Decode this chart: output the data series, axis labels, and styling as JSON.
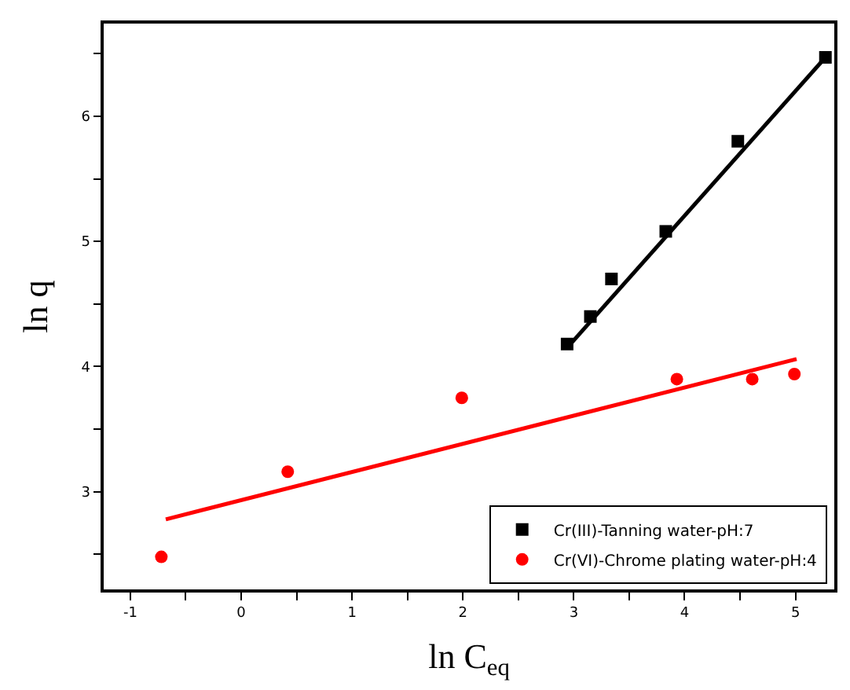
{
  "chart_data": {
    "type": "scatter",
    "xlabel": "ln C$_{eq}$",
    "ylabel": "ln q",
    "xlim": [
      -1.24,
      5.35
    ],
    "ylim": [
      2.22,
      6.74
    ],
    "xticks": [
      -1,
      {
        "value": -0.5,
        "label": null
      },
      0,
      {
        "value": 0.5,
        "label": null
      },
      1,
      {
        "value": 1.5,
        "label": null
      },
      2,
      {
        "value": 2.5,
        "label": null
      },
      3,
      {
        "value": 3.5,
        "label": null
      },
      4,
      {
        "value": 4.5,
        "label": null
      },
      5
    ],
    "yticks": [
      {
        "value": 2.5,
        "label": null
      },
      3,
      {
        "value": 3.5,
        "label": null
      },
      4,
      {
        "value": 4.5,
        "label": null
      },
      5,
      {
        "value": 5.5,
        "label": null
      },
      6,
      {
        "value": 6.5,
        "label": null
      }
    ],
    "series": [
      {
        "name": "Cr(III)-Tanning water-pH:7",
        "color": "#000000",
        "marker": "square",
        "x": [
          2.94,
          3.15,
          3.34,
          3.83,
          4.48,
          5.27
        ],
        "values": [
          4.18,
          4.4,
          4.7,
          5.08,
          5.8,
          6.47
        ]
      },
      {
        "name": "Cr(VI)-Chrome plating water-pH:4",
        "color": "#ff0000",
        "marker": "circle",
        "x": [
          -0.72,
          0.42,
          1.99,
          3.93,
          4.61,
          4.99
        ],
        "values": [
          2.48,
          3.16,
          3.75,
          3.9,
          3.9,
          3.94
        ]
      },
      {
        "type": "line",
        "color": "#000000",
        "x": [
          2.94,
          5.27
        ],
        "values": [
          4.15,
          6.47
        ]
      },
      {
        "type": "line",
        "color": "#ff0000",
        "x": [
          -0.68,
          5.01
        ],
        "values": [
          2.78,
          4.06
        ]
      }
    ],
    "legend": "bottom right"
  }
}
